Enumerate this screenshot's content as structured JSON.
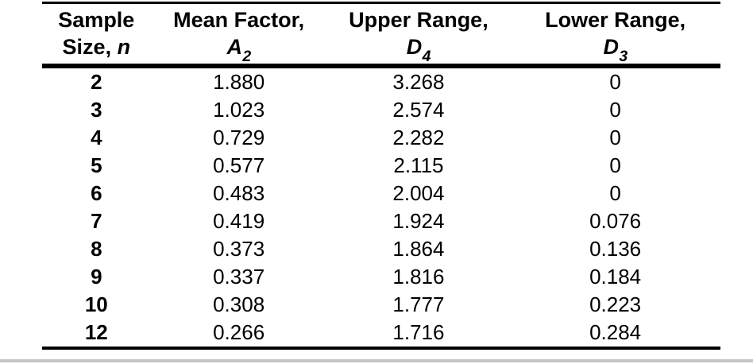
{
  "table": {
    "columns": [
      {
        "line1": "Sample",
        "line2_text": "Size, ",
        "symbol": "n",
        "subscript": ""
      },
      {
        "line1": "Mean Factor,",
        "symbol": "A",
        "subscript": "2"
      },
      {
        "line1": "Upper Range,",
        "symbol": "D",
        "subscript": "4"
      },
      {
        "line1": "Lower Range,",
        "symbol": "D",
        "subscript": "3"
      }
    ],
    "rows": [
      {
        "n": "2",
        "a2": "1.880",
        "d4": "3.268",
        "d3": "0"
      },
      {
        "n": "3",
        "a2": "1.023",
        "d4": "2.574",
        "d3": "0"
      },
      {
        "n": "4",
        "a2": "0.729",
        "d4": "2.282",
        "d3": "0"
      },
      {
        "n": "5",
        "a2": "0.577",
        "d4": "2.115",
        "d3": "0"
      },
      {
        "n": "6",
        "a2": "0.483",
        "d4": "2.004",
        "d3": "0"
      },
      {
        "n": "7",
        "a2": "0.419",
        "d4": "1.924",
        "d3": "0.076"
      },
      {
        "n": "8",
        "a2": "0.373",
        "d4": "1.864",
        "d3": "0.136"
      },
      {
        "n": "9",
        "a2": "0.337",
        "d4": "1.816",
        "d3": "0.184"
      },
      {
        "n": "10",
        "a2": "0.308",
        "d4": "1.777",
        "d3": "0.223"
      },
      {
        "n": "12",
        "a2": "0.266",
        "d4": "1.716",
        "d3": "0.284"
      }
    ]
  },
  "colors": {
    "rule": "#000000",
    "text": "#000000",
    "background": "#ffffff",
    "bottom_band": "#c6c6c6"
  }
}
